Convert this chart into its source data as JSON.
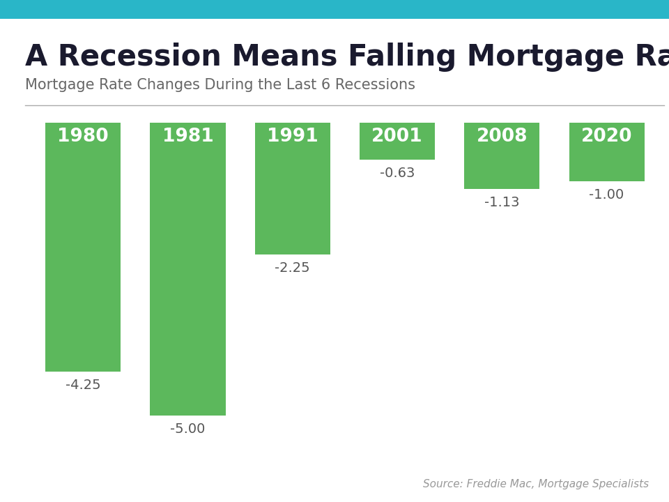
{
  "title": "A Recession Means Falling Mortgage Rates",
  "subtitle": "Mortgage Rate Changes During the Last 6 Recessions",
  "source": "Source: Freddie Mac, Mortgage Specialists",
  "categories": [
    "1980",
    "1981",
    "1991",
    "2001",
    "2008",
    "2020"
  ],
  "values": [
    -4.25,
    -5.0,
    -2.25,
    -0.63,
    -1.13,
    -1.0
  ],
  "bar_color": "#5cb85c",
  "label_color_outside": "#555555",
  "background_color": "#ffffff",
  "header_bar_color": "#29b6c8",
  "ylim": [
    -5.7,
    0.3
  ],
  "title_fontsize": 30,
  "subtitle_fontsize": 15,
  "year_fontsize": 19,
  "value_fontsize": 14,
  "source_fontsize": 11,
  "bar_width": 0.72
}
